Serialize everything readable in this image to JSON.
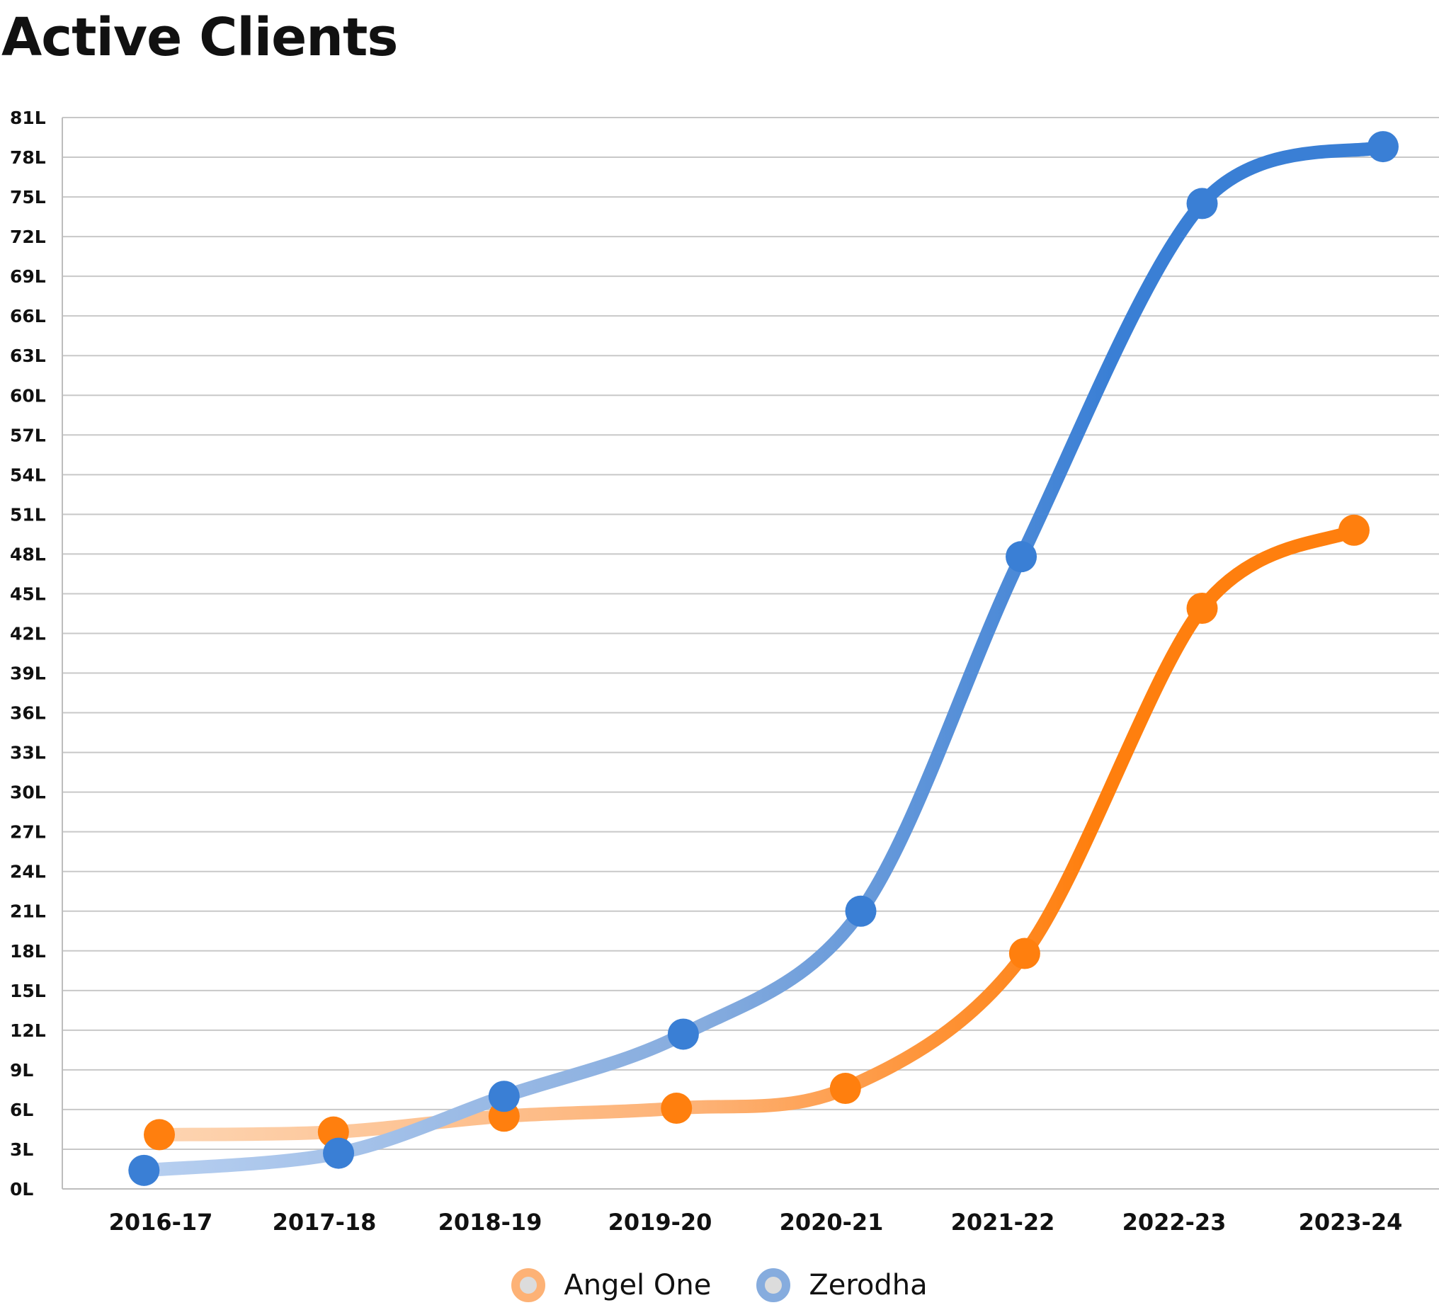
{
  "chart_data": {
    "type": "line",
    "title": "Active Clients",
    "xlabel": "",
    "ylabel": "",
    "categories": [
      "2016-17",
      "2017-18",
      "2018-19",
      "2019-20",
      "2020-21",
      "2021-22",
      "2022-23",
      "2023-24"
    ],
    "yticks": [
      "0L",
      "3L",
      "6L",
      "9L",
      "12L",
      "15L",
      "18L",
      "21L",
      "24L",
      "27L",
      "30L",
      "33L",
      "36L",
      "39L",
      "42L",
      "45L",
      "48L",
      "51L",
      "54L",
      "57L",
      "60L",
      "63L",
      "66L",
      "69L",
      "72L",
      "75L",
      "78L",
      "81L"
    ],
    "ylim": [
      0,
      81
    ],
    "yunit": "L",
    "grid": true,
    "legend_position": "bottom",
    "series": [
      {
        "name": "Angel One",
        "x_offsets": [
          0.0,
          0.02,
          0.02,
          0.03,
          0.02,
          0.07,
          0.11,
          0.0
        ],
        "values": [
          4.1,
          4.3,
          5.5,
          6.1,
          7.6,
          17.8,
          43.9,
          49.8
        ],
        "color": "#ff7f0e",
        "color_faint": "#fdd4b1",
        "color_mid": "#fdb276"
      },
      {
        "name": "Zerodha",
        "x_offsets": [
          -0.09,
          0.05,
          0.02,
          0.07,
          0.11,
          0.05,
          0.11,
          0.17
        ],
        "values": [
          1.4,
          2.7,
          7.0,
          11.7,
          21.0,
          47.8,
          74.5,
          78.8
        ],
        "color": "#3a7fd5",
        "color_faint": "#b7cff0",
        "color_mid": "#86acde"
      }
    ]
  }
}
